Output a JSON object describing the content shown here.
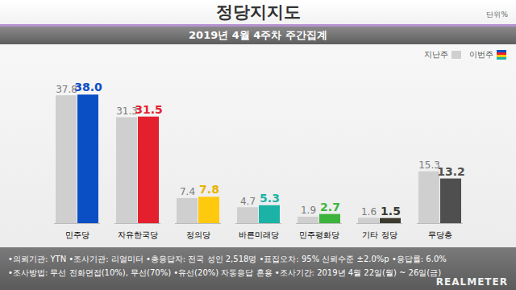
{
  "chart_data": {
    "type": "bar",
    "title": "정당지지도",
    "unit": "단위%",
    "subtitle": "2019년 4월 4주차 주간집계",
    "categories": [
      "민주당",
      "자유한국당",
      "정의당",
      "바른미래당",
      "민주평화당",
      "기타 정당",
      "무당층"
    ],
    "series": [
      {
        "name": "지난주",
        "color": "#cfcfcf",
        "values": [
          37.8,
          31.3,
          7.4,
          4.7,
          1.9,
          1.6,
          15.3
        ],
        "value_labels": [
          "37.8",
          "31.3",
          "7.4",
          "4.7",
          "1.9",
          "1.6",
          "15.3"
        ]
      },
      {
        "name": "이번주",
        "colors": [
          "#0a4fc4",
          "#e5202e",
          "#ffc90e",
          "#1bb3a6",
          "#3cb43c",
          "#3b3a2c",
          "#4f4f4f"
        ],
        "values": [
          38.0,
          31.5,
          7.8,
          5.3,
          2.7,
          1.5,
          13.2
        ],
        "value_labels": [
          "38.0",
          "31.5",
          "7.8",
          "5.3",
          "2.7",
          "1.5",
          "13.2"
        ]
      }
    ],
    "ylim": [
      0,
      40
    ],
    "data_labels": true,
    "tick_labels": "x",
    "legend": "top-right",
    "notes": [
      "•의뢰기관: YTN •조사기관: 리얼미터 •총응답자: 전국 성인 2,518명 •표집오차: 95% 신뢰수준 ±2.0%p •응답률: 6.0%",
      "•조사방법: 무선 전화면접(10%), 무선(70%) •유선(20%) 자동응답 혼용 •조사기간: 2019년 4월 22일(월) ~ 26일(금)"
    ],
    "brand": "REALMETER"
  }
}
